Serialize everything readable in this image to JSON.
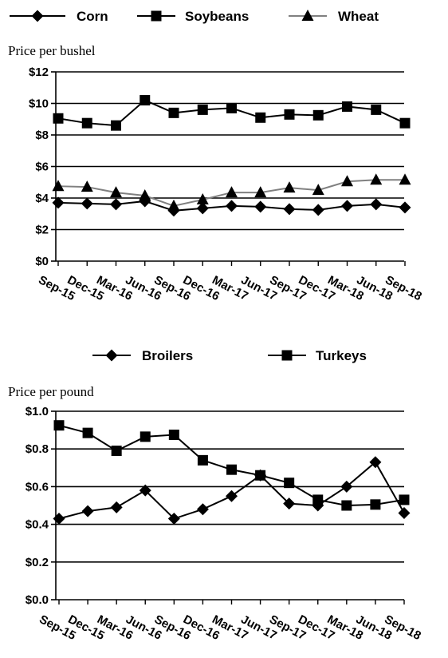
{
  "chart_data": [
    {
      "type": "line",
      "ylabel": "Price per bushel",
      "ylim": [
        0,
        12
      ],
      "yticks": [
        "$0",
        "$2",
        "$4",
        "$6",
        "$8",
        "$10",
        "$12"
      ],
      "categories": [
        "Sep-15",
        "Dec-15",
        "Mar-16",
        "Jun-16",
        "Sep-16",
        "Dec-16",
        "Mar-17",
        "Jun-17",
        "Sep-17",
        "Dec-17",
        "Mar-18",
        "Jun-18",
        "Sep-18"
      ],
      "grid": true,
      "legend": "top",
      "series": [
        {
          "name": "Corn",
          "marker": "diamond",
          "color": "#000000",
          "values": [
            3.7,
            3.65,
            3.6,
            3.8,
            3.2,
            3.35,
            3.5,
            3.45,
            3.3,
            3.25,
            3.5,
            3.6,
            3.4
          ]
        },
        {
          "name": "Soybeans",
          "marker": "square",
          "color": "#000000",
          "values": [
            9.05,
            8.75,
            8.6,
            10.2,
            9.4,
            9.6,
            9.7,
            9.1,
            9.3,
            9.25,
            9.8,
            9.6,
            8.75
          ]
        },
        {
          "name": "Wheat",
          "marker": "triangle",
          "color": "#808080",
          "values": [
            4.75,
            4.7,
            4.35,
            4.15,
            3.5,
            3.9,
            4.35,
            4.35,
            4.65,
            4.5,
            5.05,
            5.15,
            5.15
          ]
        }
      ]
    },
    {
      "type": "line",
      "ylabel": "Price per pound",
      "ylim": [
        0,
        1
      ],
      "yticks": [
        "$0.0",
        "$0.2",
        "$0.4",
        "$0.6",
        "$0.8",
        "$1.0"
      ],
      "categories": [
        "Sep-15",
        "Dec-15",
        "Mar-16",
        "Jun-16",
        "Sep-16",
        "Dec-16",
        "Mar-17",
        "Jun-17",
        "Sep-17",
        "Dec-17",
        "Mar-18",
        "Jun-18",
        "Sep-18"
      ],
      "grid": true,
      "legend": "top",
      "series": [
        {
          "name": "Broilers",
          "marker": "diamond",
          "color": "#000000",
          "values": [
            0.43,
            0.47,
            0.49,
            0.58,
            0.43,
            0.48,
            0.55,
            0.66,
            0.51,
            0.5,
            0.6,
            0.73,
            0.46
          ]
        },
        {
          "name": "Turkeys",
          "marker": "square",
          "color": "#000000",
          "values": [
            0.925,
            0.885,
            0.79,
            0.865,
            0.875,
            0.74,
            0.69,
            0.66,
            0.62,
            0.53,
            0.5,
            0.505,
            0.53
          ]
        }
      ]
    }
  ]
}
